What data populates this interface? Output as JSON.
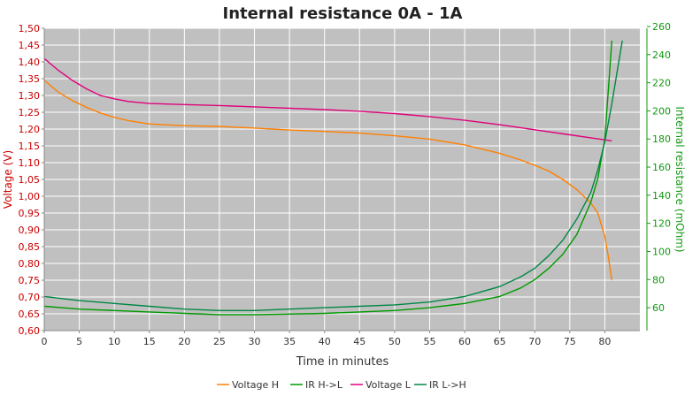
{
  "chart_data": {
    "type": "line",
    "title": "Internal resistance  0A - 1A",
    "xlabel": "Time in minutes",
    "ylabel_left": "Voltage (V)",
    "ylabel_right": "Internal resistance (mOhm)",
    "xlim": [
      0,
      85
    ],
    "ylim_left": [
      0.6,
      1.5
    ],
    "ylim_right": [
      50,
      260
    ],
    "x_ticks": [
      "0",
      "5",
      "10",
      "15",
      "20",
      "25",
      "30",
      "35",
      "40",
      "45",
      "50",
      "55",
      "60",
      "65",
      "70",
      "75",
      "80"
    ],
    "y_left_ticks": [
      "0,60",
      "0,65",
      "0,70",
      "0,75",
      "0,80",
      "0,85",
      "0,90",
      "0,95",
      "1,00",
      "1,05",
      "1,10",
      "1,15",
      "1,20",
      "1,25",
      "1,30",
      "1,35",
      "1,40",
      "1,45",
      "1,50"
    ],
    "y_right_ticks": [
      "60",
      "80",
      "100",
      "120",
      "140",
      "160",
      "180",
      "200",
      "220",
      "240",
      "260"
    ],
    "grid": true,
    "legend_position": "bottom",
    "colors": {
      "voltage_h": "#ff8000",
      "ir_h_l": "#009900",
      "voltage_l": "#e0007a",
      "ir_l_h": "#008844",
      "plot_bg": "#c0c0c0",
      "grid": "#ffffff",
      "left_axis": "#cc0000",
      "right_axis": "#119911"
    },
    "series": [
      {
        "name": "Voltage H",
        "axis": "left",
        "color_key": "voltage_h",
        "points": [
          [
            0,
            1.345
          ],
          [
            2,
            1.31
          ],
          [
            4,
            1.285
          ],
          [
            6,
            1.265
          ],
          [
            8,
            1.248
          ],
          [
            10,
            1.235
          ],
          [
            12,
            1.225
          ],
          [
            15,
            1.215
          ],
          [
            20,
            1.21
          ],
          [
            25,
            1.208
          ],
          [
            30,
            1.203
          ],
          [
            35,
            1.197
          ],
          [
            40,
            1.193
          ],
          [
            45,
            1.188
          ],
          [
            50,
            1.18
          ],
          [
            55,
            1.17
          ],
          [
            60,
            1.153
          ],
          [
            65,
            1.128
          ],
          [
            68,
            1.108
          ],
          [
            70,
            1.092
          ],
          [
            72,
            1.075
          ],
          [
            74,
            1.05
          ],
          [
            76,
            1.02
          ],
          [
            78,
            0.98
          ],
          [
            79,
            0.95
          ],
          [
            80,
            0.88
          ],
          [
            80.5,
            0.82
          ],
          [
            81,
            0.75
          ]
        ]
      },
      {
        "name": "IR H->L",
        "axis": "right",
        "color_key": "ir_h_l",
        "points": [
          [
            0,
            61
          ],
          [
            5,
            59
          ],
          [
            10,
            58
          ],
          [
            15,
            57
          ],
          [
            20,
            56
          ],
          [
            25,
            55
          ],
          [
            30,
            55
          ],
          [
            35,
            55.5
          ],
          [
            40,
            56
          ],
          [
            45,
            57
          ],
          [
            50,
            58
          ],
          [
            55,
            60
          ],
          [
            60,
            63
          ],
          [
            65,
            68
          ],
          [
            68,
            74
          ],
          [
            70,
            80
          ],
          [
            72,
            88
          ],
          [
            74,
            98
          ],
          [
            76,
            112
          ],
          [
            78,
            135
          ],
          [
            79,
            152
          ],
          [
            80,
            180
          ],
          [
            80.5,
            215
          ],
          [
            81,
            250
          ]
        ]
      },
      {
        "name": "Voltage L",
        "axis": "left",
        "color_key": "voltage_l",
        "points": [
          [
            0,
            1.41
          ],
          [
            2,
            1.375
          ],
          [
            4,
            1.345
          ],
          [
            6,
            1.32
          ],
          [
            8,
            1.3
          ],
          [
            10,
            1.29
          ],
          [
            12,
            1.282
          ],
          [
            15,
            1.276
          ],
          [
            20,
            1.273
          ],
          [
            25,
            1.27
          ],
          [
            30,
            1.266
          ],
          [
            35,
            1.262
          ],
          [
            40,
            1.258
          ],
          [
            45,
            1.253
          ],
          [
            50,
            1.246
          ],
          [
            55,
            1.237
          ],
          [
            60,
            1.226
          ],
          [
            65,
            1.213
          ],
          [
            70,
            1.198
          ],
          [
            75,
            1.183
          ],
          [
            78,
            1.174
          ],
          [
            81,
            1.165
          ]
        ]
      },
      {
        "name": "IR L->H",
        "axis": "right",
        "color_key": "ir_l_h",
        "points": [
          [
            0,
            68
          ],
          [
            5,
            65
          ],
          [
            10,
            63
          ],
          [
            15,
            61
          ],
          [
            20,
            59
          ],
          [
            25,
            58
          ],
          [
            30,
            58
          ],
          [
            35,
            59
          ],
          [
            40,
            60
          ],
          [
            45,
            61
          ],
          [
            50,
            62
          ],
          [
            55,
            64
          ],
          [
            60,
            68
          ],
          [
            65,
            75
          ],
          [
            68,
            82
          ],
          [
            70,
            88
          ],
          [
            72,
            97
          ],
          [
            74,
            108
          ],
          [
            76,
            123
          ],
          [
            78,
            142
          ],
          [
            79,
            158
          ],
          [
            80,
            178
          ],
          [
            81,
            205
          ],
          [
            82,
            235
          ],
          [
            82.5,
            250
          ]
        ]
      }
    ]
  }
}
